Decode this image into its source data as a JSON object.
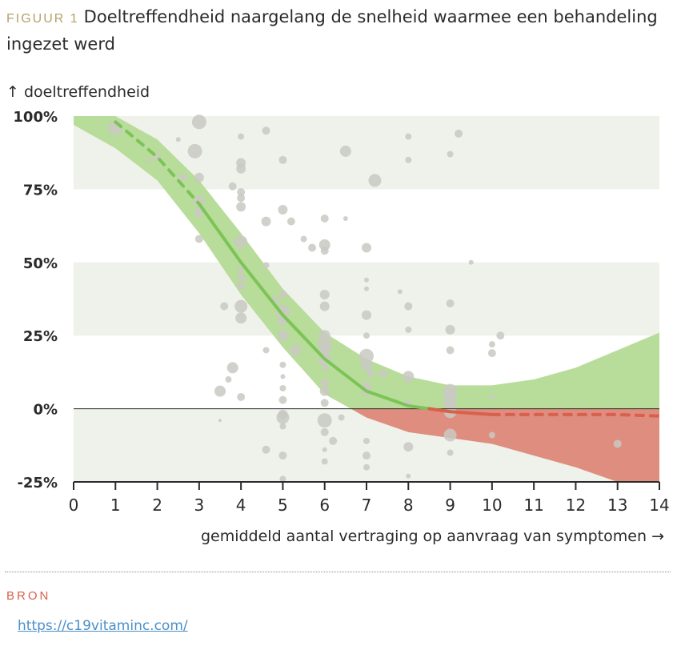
{
  "header": {
    "figure_label": "FIGUUR 1",
    "title": "Doeltreffendheid naargelang de snelheid waarmee een behandeling ingezet werd"
  },
  "source": {
    "label": "BRON",
    "url": "https://c19vitaminc.com/"
  },
  "colors": {
    "band": "#eef2ea",
    "green_fill": "#b8dc9a",
    "green_line": "#7cc455",
    "red_fill": "#de8d7f",
    "red_line": "#d9604b",
    "bubble": "#c9c9c3"
  },
  "chart_data": {
    "type": "scatter",
    "ylabel": "↑ doeltreffendheid",
    "xlabel": "gemiddeld aantal vertraging op aanvraag van symptomen →",
    "xlim": [
      0,
      14
    ],
    "ylim": [
      -25,
      100
    ],
    "x_ticks": [
      "0",
      "1",
      "2",
      "3",
      "4",
      "5",
      "6",
      "7",
      "8",
      "9",
      "10",
      "11",
      "12",
      "13",
      "14"
    ],
    "y_ticks": [
      {
        "value": 100,
        "label": "100%"
      },
      {
        "value": 75,
        "label": "75%"
      },
      {
        "value": 50,
        "label": "50%"
      },
      {
        "value": 25,
        "label": "25%"
      },
      {
        "value": 0,
        "label": "0%"
      },
      {
        "value": -25,
        "label": "-25%"
      }
    ],
    "bands": [
      [
        75,
        100
      ],
      [
        25,
        50
      ],
      [
        -25,
        0
      ]
    ],
    "fit_line": {
      "x": [
        0,
        1,
        2,
        3,
        4,
        5,
        6,
        7,
        8,
        8.5,
        9,
        10,
        11,
        12,
        13,
        14
      ],
      "y": [
        99,
        98,
        86,
        70,
        50,
        32,
        17,
        6,
        1,
        0,
        -1,
        -2,
        -2,
        -2,
        -2,
        -2.5
      ]
    },
    "ci_upper": {
      "x": [
        0,
        1,
        2,
        3,
        4,
        5,
        6,
        7,
        8,
        9,
        10,
        11,
        12,
        13,
        14
      ],
      "y": [
        100,
        100,
        92,
        78,
        60,
        41,
        26,
        17,
        11,
        8,
        8,
        10,
        14,
        20,
        26
      ]
    },
    "ci_lower": {
      "x": [
        0,
        1,
        2,
        3,
        4,
        5,
        6,
        7,
        8,
        9,
        10,
        11,
        12,
        13,
        14
      ],
      "y": [
        97,
        89,
        78,
        60,
        39,
        21,
        5,
        -3,
        -8,
        -10,
        -12,
        -16,
        -20,
        -25,
        -25
      ]
    },
    "points": [
      {
        "x": 1.0,
        "y": 96,
        "s": 9
      },
      {
        "x": 2.0,
        "y": 86,
        "s": 5
      },
      {
        "x": 1.8,
        "y": 85,
        "s": 3
      },
      {
        "x": 2.5,
        "y": 92,
        "s": 3
      },
      {
        "x": 2.6,
        "y": 79,
        "s": 5
      },
      {
        "x": 3.0,
        "y": 98,
        "s": 9
      },
      {
        "x": 2.9,
        "y": 88,
        "s": 9
      },
      {
        "x": 3.0,
        "y": 79,
        "s": 6
      },
      {
        "x": 3.0,
        "y": 71,
        "s": 7
      },
      {
        "x": 3.0,
        "y": 67,
        "s": 6
      },
      {
        "x": 3.0,
        "y": 58,
        "s": 5
      },
      {
        "x": 3.8,
        "y": 76,
        "s": 5
      },
      {
        "x": 4.0,
        "y": 93,
        "s": 4
      },
      {
        "x": 4.0,
        "y": 84,
        "s": 6
      },
      {
        "x": 4.0,
        "y": 82,
        "s": 6
      },
      {
        "x": 4.0,
        "y": 74,
        "s": 5
      },
      {
        "x": 4.0,
        "y": 72,
        "s": 5
      },
      {
        "x": 4.0,
        "y": 69,
        "s": 6
      },
      {
        "x": 4.0,
        "y": 57,
        "s": 8
      },
      {
        "x": 4.0,
        "y": 48,
        "s": 4
      },
      {
        "x": 4.0,
        "y": 45,
        "s": 5
      },
      {
        "x": 4.0,
        "y": 42,
        "s": 5
      },
      {
        "x": 4.0,
        "y": 35,
        "s": 8
      },
      {
        "x": 4.0,
        "y": 31,
        "s": 7
      },
      {
        "x": 4.0,
        "y": 4,
        "s": 5
      },
      {
        "x": 3.6,
        "y": 35,
        "s": 5
      },
      {
        "x": 3.8,
        "y": 14,
        "s": 7
      },
      {
        "x": 3.7,
        "y": 10,
        "s": 4
      },
      {
        "x": 3.5,
        "y": 6,
        "s": 7
      },
      {
        "x": 3.5,
        "y": -4,
        "s": 2
      },
      {
        "x": 4.6,
        "y": 95,
        "s": 5
      },
      {
        "x": 4.6,
        "y": 64,
        "s": 6
      },
      {
        "x": 4.6,
        "y": 49,
        "s": 4
      },
      {
        "x": 4.8,
        "y": 37,
        "s": 5
      },
      {
        "x": 4.6,
        "y": 20,
        "s": 4
      },
      {
        "x": 4.6,
        "y": -14,
        "s": 5
      },
      {
        "x": 5.0,
        "y": 85,
        "s": 5
      },
      {
        "x": 5.0,
        "y": 68,
        "s": 6
      },
      {
        "x": 5.2,
        "y": 64,
        "s": 5
      },
      {
        "x": 5.0,
        "y": 39,
        "s": 5
      },
      {
        "x": 5.0,
        "y": 33,
        "s": 9
      },
      {
        "x": 5.0,
        "y": 30,
        "s": 6
      },
      {
        "x": 5.0,
        "y": 25,
        "s": 7
      },
      {
        "x": 5.0,
        "y": 15,
        "s": 4
      },
      {
        "x": 5.0,
        "y": 11,
        "s": 3
      },
      {
        "x": 5.0,
        "y": 7,
        "s": 4
      },
      {
        "x": 5.0,
        "y": 3,
        "s": 5
      },
      {
        "x": 5.0,
        "y": -2,
        "s": 6
      },
      {
        "x": 5.0,
        "y": -3,
        "s": 8
      },
      {
        "x": 5.0,
        "y": -6,
        "s": 4
      },
      {
        "x": 5.0,
        "y": -16,
        "s": 5
      },
      {
        "x": 5.0,
        "y": -24,
        "s": 4
      },
      {
        "x": 5.3,
        "y": 20,
        "s": 7
      },
      {
        "x": 5.5,
        "y": 58,
        "s": 4
      },
      {
        "x": 5.7,
        "y": 55,
        "s": 5
      },
      {
        "x": 6.0,
        "y": 65,
        "s": 5
      },
      {
        "x": 6.0,
        "y": 56,
        "s": 7
      },
      {
        "x": 6.0,
        "y": 54,
        "s": 5
      },
      {
        "x": 6.0,
        "y": 39,
        "s": 6
      },
      {
        "x": 6.0,
        "y": 35,
        "s": 6
      },
      {
        "x": 6.0,
        "y": 25,
        "s": 7
      },
      {
        "x": 6.0,
        "y": 22,
        "s": 9
      },
      {
        "x": 6.0,
        "y": 20,
        "s": 7
      },
      {
        "x": 6.0,
        "y": 17,
        "s": 8
      },
      {
        "x": 6.0,
        "y": 14,
        "s": 4
      },
      {
        "x": 6.0,
        "y": 9,
        "s": 5
      },
      {
        "x": 6.0,
        "y": 6,
        "s": 6
      },
      {
        "x": 6.0,
        "y": 2,
        "s": 5
      },
      {
        "x": 6.0,
        "y": -4,
        "s": 9
      },
      {
        "x": 6.0,
        "y": -8,
        "s": 5
      },
      {
        "x": 6.2,
        "y": -11,
        "s": 5
      },
      {
        "x": 6.0,
        "y": -14,
        "s": 3
      },
      {
        "x": 6.0,
        "y": -18,
        "s": 4
      },
      {
        "x": 6.5,
        "y": 88,
        "s": 7
      },
      {
        "x": 6.5,
        "y": 65,
        "s": 3
      },
      {
        "x": 6.4,
        "y": -3,
        "s": 4
      },
      {
        "x": 7.0,
        "y": 55,
        "s": 6
      },
      {
        "x": 7.0,
        "y": 44,
        "s": 3
      },
      {
        "x": 7.0,
        "y": 41,
        "s": 3
      },
      {
        "x": 7.0,
        "y": 32,
        "s": 6
      },
      {
        "x": 7.0,
        "y": 25,
        "s": 4
      },
      {
        "x": 7.0,
        "y": 18,
        "s": 9
      },
      {
        "x": 7.0,
        "y": 15,
        "s": 7
      },
      {
        "x": 7.0,
        "y": 8,
        "s": 5
      },
      {
        "x": 7.0,
        "y": 6,
        "s": 6
      },
      {
        "x": 7.0,
        "y": -11,
        "s": 4
      },
      {
        "x": 7.0,
        "y": -16,
        "s": 5
      },
      {
        "x": 7.0,
        "y": -20,
        "s": 4
      },
      {
        "x": 7.2,
        "y": 78,
        "s": 8
      },
      {
        "x": 7.1,
        "y": 12,
        "s": 5
      },
      {
        "x": 7.4,
        "y": 12,
        "s": 5
      },
      {
        "x": 7.8,
        "y": 40,
        "s": 3
      },
      {
        "x": 8.0,
        "y": 93,
        "s": 4
      },
      {
        "x": 8.0,
        "y": 85,
        "s": 4
      },
      {
        "x": 8.0,
        "y": 35,
        "s": 5
      },
      {
        "x": 8.0,
        "y": 27,
        "s": 4
      },
      {
        "x": 8.0,
        "y": 11,
        "s": 7
      },
      {
        "x": 8.0,
        "y": 2,
        "s": 4
      },
      {
        "x": 8.0,
        "y": -13,
        "s": 6
      },
      {
        "x": 8.0,
        "y": -23,
        "s": 3
      },
      {
        "x": 9.0,
        "y": 87,
        "s": 4
      },
      {
        "x": 9.2,
        "y": 94,
        "s": 5
      },
      {
        "x": 9.0,
        "y": 36,
        "s": 5
      },
      {
        "x": 9.0,
        "y": 27,
        "s": 6
      },
      {
        "x": 9.0,
        "y": 20,
        "s": 5
      },
      {
        "x": 9.0,
        "y": 6,
        "s": 9
      },
      {
        "x": 9.0,
        "y": 4,
        "s": 8
      },
      {
        "x": 9.0,
        "y": 2,
        "s": 8
      },
      {
        "x": 9.0,
        "y": -1,
        "s": 8
      },
      {
        "x": 9.0,
        "y": -9,
        "s": 8
      },
      {
        "x": 9.0,
        "y": -15,
        "s": 4
      },
      {
        "x": 9.5,
        "y": 50,
        "s": 3
      },
      {
        "x": 10.0,
        "y": 22,
        "s": 4
      },
      {
        "x": 10.0,
        "y": 19,
        "s": 5
      },
      {
        "x": 10.2,
        "y": 25,
        "s": 5
      },
      {
        "x": 10.0,
        "y": 4,
        "s": 3
      },
      {
        "x": 10.0,
        "y": -9,
        "s": 4
      },
      {
        "x": 13.0,
        "y": -12,
        "s": 5
      }
    ]
  }
}
